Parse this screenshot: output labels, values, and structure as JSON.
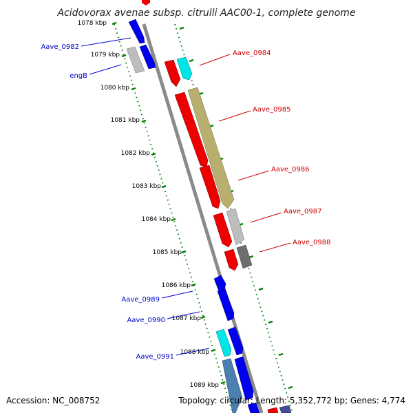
{
  "title": "Acidovorax avenae subsp. citrulli AAC00-1, complete genome",
  "footer": {
    "accession": "Accession: NC_008752",
    "summary": "Topology: circular; Length: 5,352,772 bp; Genes: 4,774"
  },
  "scale_labels": [
    "1078 kbp",
    "1079 kbp",
    "1080 kbp",
    "1081 kbp",
    "1082 kbp",
    "1083 kbp",
    "1084 kbp",
    "1085 kbp",
    "1086 kbp",
    "1087 kbp",
    "1088 kbp",
    "1089 kbp"
  ],
  "gene_labels": {
    "left": [
      "Aave_0982",
      "engB",
      "Aave_0989",
      "Aave_0990",
      "Aave_0991"
    ],
    "right": [
      "Aave_0984",
      "Aave_0985",
      "Aave_0986",
      "Aave_0987",
      "Aave_0988"
    ]
  },
  "colors": {
    "forward_gene": "#0000ee",
    "reverse_gene": "#ee0000",
    "rna_gene": "#00e5e5",
    "other_gene": "#bdbdbd",
    "tan_gene": "#b8ae6e",
    "dark_gene": "#6e6e6e",
    "steel_gene": "#4a7fb0",
    "tick_green": "#008000",
    "backbone": "#8a8a8a"
  }
}
